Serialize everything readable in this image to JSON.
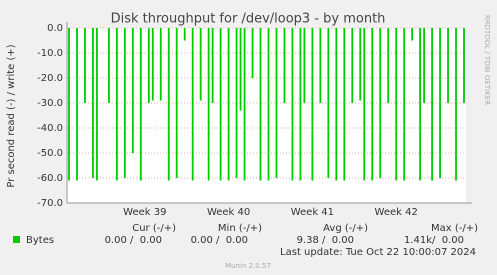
{
  "chart_data": {
    "type": "bar",
    "title": "Disk throughput for /dev/loop3 - by month",
    "y_label": "Pr second read (-) / write (+)",
    "categories": [
      null,
      null,
      null,
      null,
      null,
      null,
      null,
      null,
      null,
      null,
      null,
      null,
      null,
      null,
      null,
      null,
      null,
      null,
      null,
      "Week 39",
      null,
      null,
      null,
      null,
      null,
      null,
      null,
      null,
      null,
      null,
      null,
      null,
      null,
      null,
      null,
      null,
      null,
      null,
      null,
      null,
      "Week 40",
      null,
      null,
      null,
      null,
      null,
      null,
      null,
      null,
      null,
      null,
      null,
      null,
      null,
      null,
      null,
      null,
      null,
      null,
      null,
      null,
      "Week 41",
      null,
      null,
      null,
      null,
      null,
      null,
      null,
      null,
      null,
      null,
      null,
      null,
      null,
      null,
      null,
      null,
      null,
      null,
      null,
      null,
      "Week 42",
      null,
      null,
      null,
      null,
      null,
      null,
      null,
      null,
      null,
      null,
      null,
      null,
      null,
      null,
      null,
      null,
      null
    ],
    "series": [
      {
        "name": "Bytes",
        "color": "#00cc00",
        "values": [
          -61,
          0,
          -61,
          0,
          -30,
          0,
          -60,
          -61,
          0,
          0,
          -30,
          0,
          -61,
          0,
          -60,
          0,
          -50,
          0,
          -61,
          0,
          -30,
          -29,
          0,
          -29,
          0,
          -61,
          0,
          -60,
          0,
          -5,
          0,
          -61,
          0,
          -29,
          0,
          -61,
          -30,
          0,
          -61,
          0,
          -61,
          0,
          -60,
          -33,
          -61,
          0,
          -20,
          0,
          -61,
          0,
          -61,
          0,
          -60,
          0,
          -30,
          0,
          -61,
          0,
          -61,
          -30,
          0,
          -61,
          0,
          -30,
          0,
          -60,
          0,
          -61,
          0,
          -61,
          0,
          -30,
          0,
          -29,
          -61,
          0,
          -61,
          0,
          -60,
          0,
          -30,
          0,
          -61,
          0,
          -61,
          0,
          -5,
          0,
          -61,
          -30,
          0,
          -61,
          0,
          -60,
          0,
          -30,
          0,
          -61,
          0,
          -30
        ]
      }
    ],
    "ylim": [
      -70,
      0
    ],
    "yticks": [
      {
        "value": 0,
        "label": "0.0"
      },
      {
        "value": -10,
        "label": "-10.0"
      },
      {
        "value": -20,
        "label": "-20.0"
      },
      {
        "value": -30,
        "label": "-30.0"
      },
      {
        "value": -40,
        "label": "-40.0"
      },
      {
        "value": -50,
        "label": "-50.0"
      },
      {
        "value": -60,
        "label": "-60.0"
      },
      {
        "value": -70,
        "label": "-70.0"
      }
    ],
    "grid": true,
    "summary": {
      "headers": [
        "Cur (-/+)",
        "Min (-/+)",
        "Avg (-/+)",
        "Max (-/+)"
      ],
      "row": [
        "0.00 /  0.00",
        "0.00 /  0.00",
        "9.38 /  0.00",
        "1.41k/  0.00"
      ]
    },
    "last_update": "Last update: Tue Oct 22 10:00:07 2024",
    "side_text": "RRDTOOL / TOBI OETIKER",
    "footer": "Munin 2.0.57"
  }
}
